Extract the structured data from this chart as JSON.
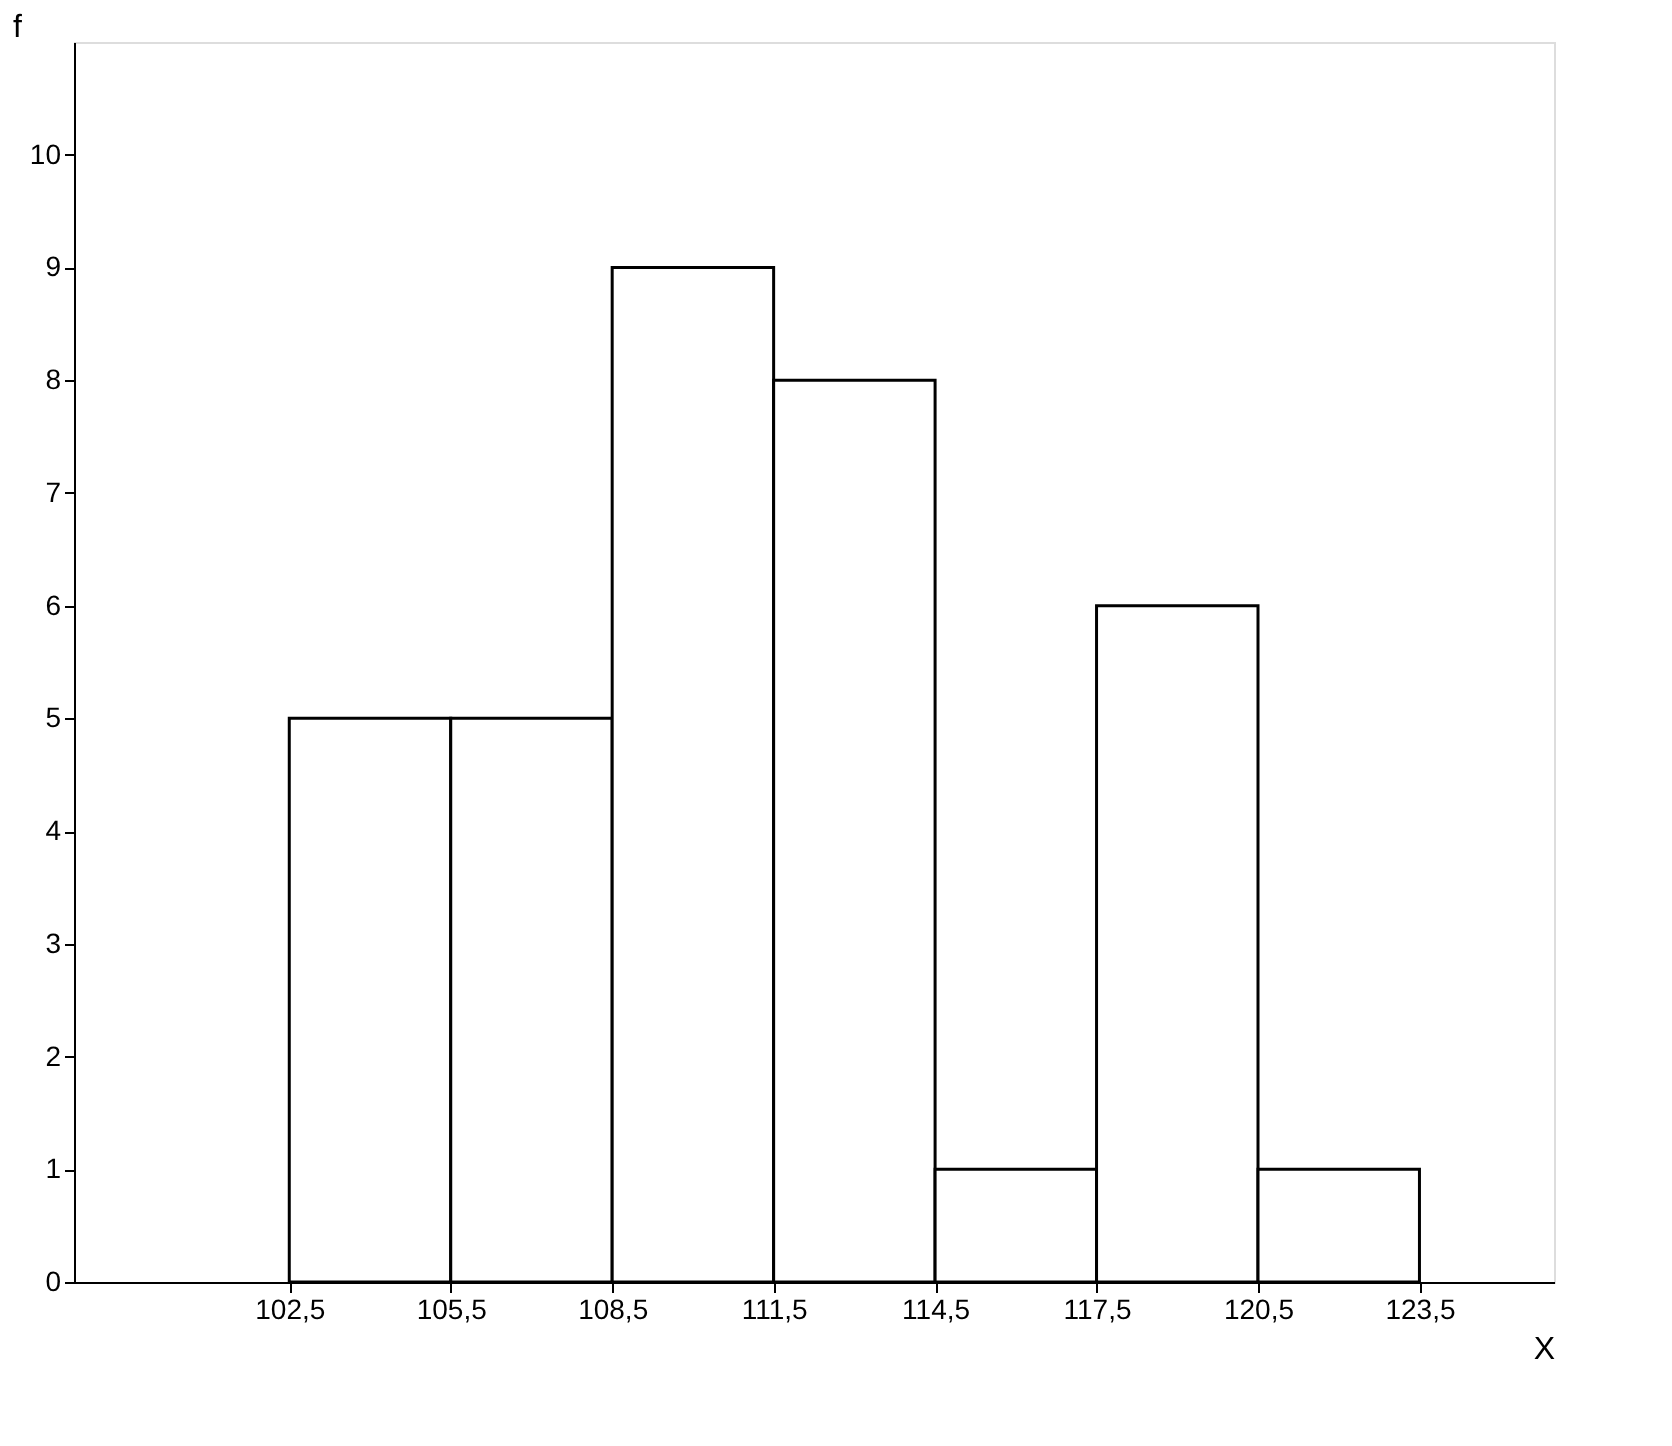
{
  "chart_data": {
    "type": "histogram",
    "xlabel": "X",
    "ylabel": "f",
    "bins": [
      102.5,
      105.5,
      108.5,
      111.5,
      114.5,
      117.5,
      120.5,
      123.5
    ],
    "values": [
      5,
      5,
      9,
      8,
      1,
      6,
      1
    ],
    "color": "#ffffff",
    "xlim": [
      98.5,
      126
    ],
    "ylim": [
      0,
      11
    ],
    "xticks": [
      {
        "value": 102.5,
        "label": "102,5"
      },
      {
        "value": 105.5,
        "label": "105,5"
      },
      {
        "value": 108.5,
        "label": "108,5"
      },
      {
        "value": 111.5,
        "label": "111,5"
      },
      {
        "value": 114.5,
        "label": "114,5"
      },
      {
        "value": 117.5,
        "label": "117,5"
      },
      {
        "value": 120.5,
        "label": "120,5"
      },
      {
        "value": 123.5,
        "label": "123,5"
      }
    ],
    "yticks": [
      0,
      1,
      2,
      3,
      4,
      5,
      6,
      7,
      8,
      9,
      10
    ],
    "grid": false
  }
}
